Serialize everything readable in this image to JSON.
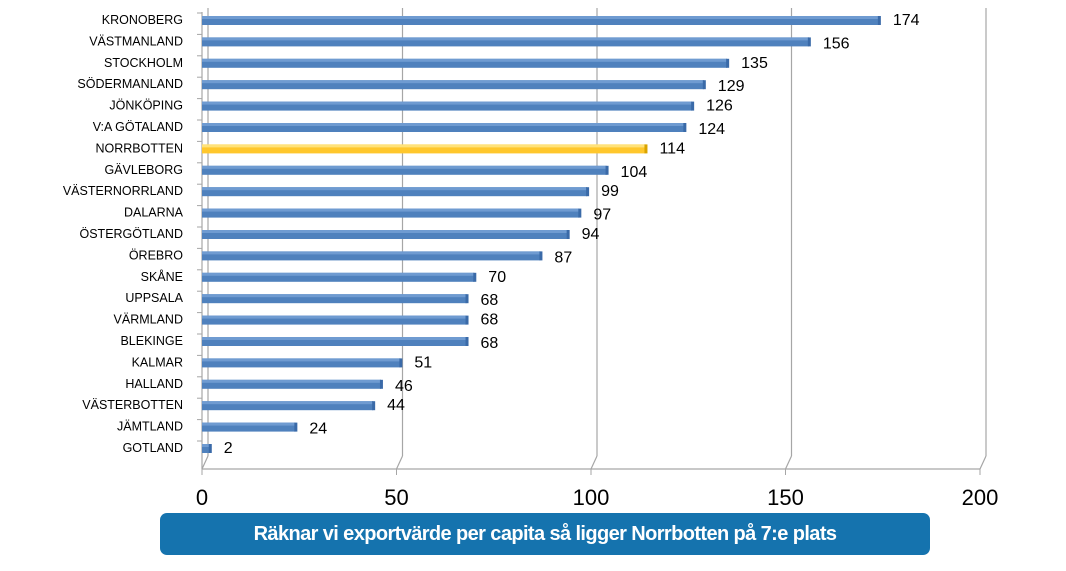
{
  "chart_data": {
    "type": "bar",
    "orientation": "horizontal",
    "categories": [
      "KRONOBERG",
      "VÄSTMANLAND",
      "STOCKHOLM",
      "SÖDERMANLAND",
      "JÖNKÖPING",
      "V:A GÖTALAND",
      "NORRBOTTEN",
      "GÄVLEBORG",
      "VÄSTERNORRLAND",
      "DALARNA",
      "ÖSTERGÖTLAND",
      "ÖREBRO",
      "SKÅNE",
      "UPPSALA",
      "VÄRMLAND",
      "BLEKINGE",
      "KALMAR",
      "HALLAND",
      "VÄSTERBOTTEN",
      "JÄMTLAND",
      "GOTLAND"
    ],
    "values": [
      174,
      156,
      135,
      129,
      126,
      124,
      114,
      104,
      99,
      97,
      94,
      87,
      70,
      68,
      68,
      68,
      51,
      46,
      44,
      24,
      2
    ],
    "highlight": "NORRBOTTEN",
    "xlim": [
      0,
      200
    ],
    "xticks": [
      0,
      50,
      100,
      150,
      200
    ],
    "grid": true,
    "colors": {
      "bar": "#4f81bd",
      "highlight": "#ffc72c"
    }
  },
  "caption": "Räknar vi exportvärde per capita så ligger Norrbotten på 7:e plats"
}
